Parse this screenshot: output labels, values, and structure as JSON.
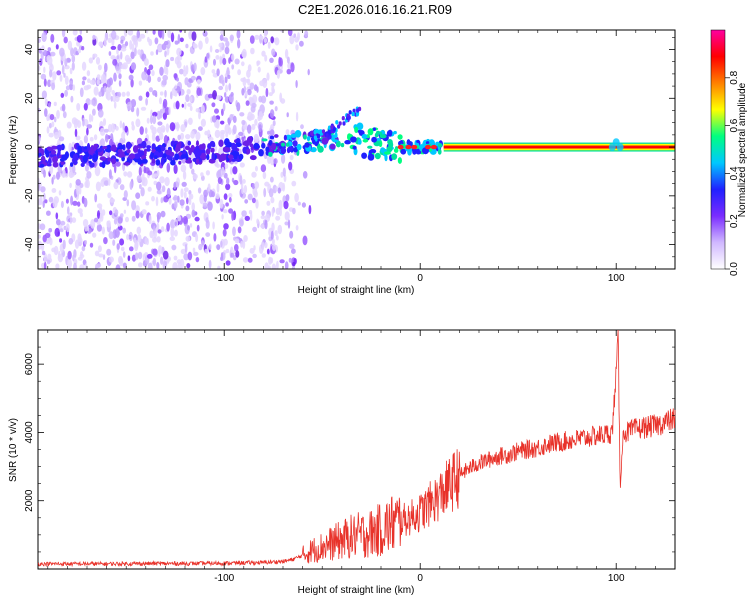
{
  "page": {
    "title": "C2E1.2026.016.16.21.R09"
  },
  "spectrogram": {
    "xlabel": "Height of straight line (km)",
    "ylabel": "Frequency (Hz)",
    "colorbar_label": "Normalized spectral amplitude",
    "colormap": [
      "#ffffff",
      "#d0b8ff",
      "#7a2cff",
      "#2020ff",
      "#00c8ff",
      "#00ff80",
      "#ffff00",
      "#ff8000",
      "#ff0000",
      "#ff00a0"
    ],
    "colorbar_ticks": [
      "0.0",
      "0.2",
      "0.4",
      "0.6",
      "0.8"
    ]
  },
  "chart_data": [
    {
      "type": "heatmap",
      "title": "",
      "xlabel": "Height of straight line (km)",
      "ylabel": "Frequency (Hz)",
      "xlim": [
        -195,
        130
      ],
      "ylim": [
        -50,
        48
      ],
      "xticks": [
        -100,
        0,
        100
      ],
      "yticks": [
        -40,
        -20,
        0,
        20,
        40
      ],
      "colorbar": {
        "label": "Normalized spectral amplitude",
        "range": [
          0,
          1
        ],
        "ticks": [
          0.0,
          0.2,
          0.4,
          0.6,
          0.8
        ]
      },
      "ridge": {
        "description_x": [
          -195,
          -150,
          -100,
          -60,
          -40,
          -20,
          -10,
          0,
          10,
          130
        ],
        "freq_hz": [
          -4,
          -3,
          -2,
          2,
          4,
          1,
          0,
          0,
          0,
          0
        ]
      }
    },
    {
      "type": "line",
      "title": "",
      "xlabel": "Height of straight line (km)",
      "ylabel": "SNR (10 * v/v)",
      "xlim": [
        -195,
        130
      ],
      "ylim": [
        0,
        7000
      ],
      "xticks": [
        -100,
        0,
        100
      ],
      "yticks": [
        2000,
        4000,
        6000
      ],
      "series": [
        {
          "color": "#e8322a",
          "x": [
            -195,
            -180,
            -160,
            -140,
            -120,
            -100,
            -90,
            -80,
            -70,
            -65,
            -60,
            -55,
            -50,
            -45,
            -40,
            -35,
            -30,
            -25,
            -20,
            -15,
            -10,
            -5,
            0,
            5,
            10,
            15,
            20,
            25,
            30,
            35,
            40,
            45,
            50,
            55,
            60,
            65,
            70,
            75,
            80,
            85,
            90,
            95,
            98,
            100,
            101,
            102,
            103,
            104,
            105,
            108,
            110,
            115,
            120,
            125,
            130
          ],
          "y": [
            150,
            150,
            150,
            160,
            160,
            170,
            180,
            190,
            220,
            280,
            400,
            550,
            650,
            750,
            850,
            950,
            1000,
            1050,
            1150,
            1300,
            1400,
            1500,
            1650,
            1900,
            2150,
            2450,
            2750,
            2950,
            3100,
            3200,
            3300,
            3350,
            3450,
            3500,
            3550,
            3650,
            3700,
            3750,
            3800,
            3850,
            3900,
            3950,
            4000,
            5800,
            6900,
            2400,
            3600,
            4000,
            4000,
            4050,
            4100,
            4150,
            4200,
            4300,
            4400
          ]
        }
      ]
    }
  ]
}
